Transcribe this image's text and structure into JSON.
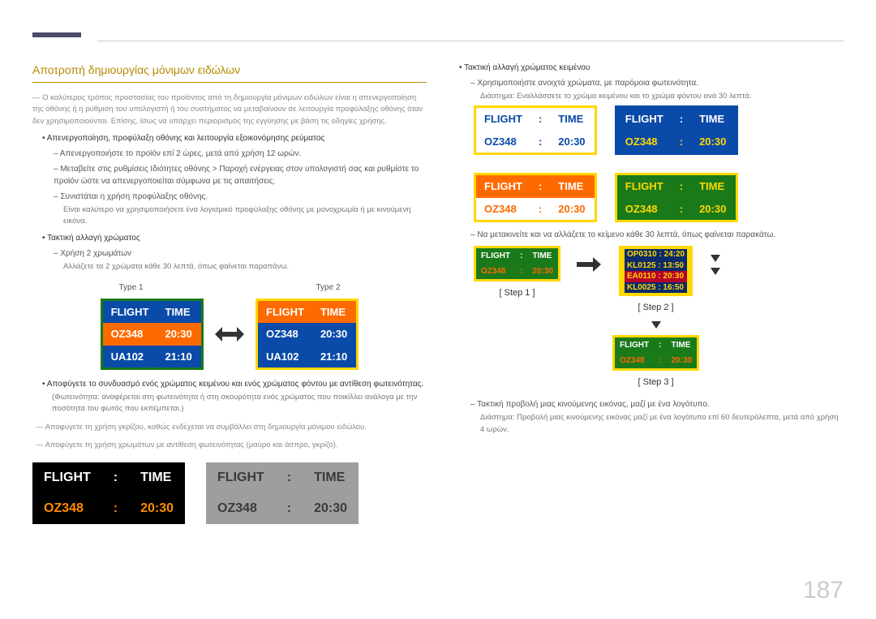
{
  "page_number": "187",
  "heading": "Αποτροπή δημιουργίας μόνιμων ειδώλων",
  "left": {
    "p1": "Ο καλύτερος τρόπος προστασίας του προϊόντος από τη δημιουργία μόνιμων ειδώλων είναι η απενεργοποίηση της οθόνης ή η ρύθμιση του υπολογιστή ή του συστήματος να μεταβαίνουν σε λειτουργία προφύλαξης οθόνης όταν δεν χρησιμοποιούνται. Επίσης, ίσως να υπάρχει περιορισμός της εγγύησης με βάση τις οδηγίες χρήσης.",
    "b1": "Απενεργοποίηση, προφύλαξη οθόνης και λειτουργία εξοικονόμησης ρεύματος",
    "b1_s1": "Απενεργοποιήστε το προϊόν επί 2 ώρες, μετά από χρήση 12 ωρών.",
    "b1_s2": "Μεταβείτε στις ρυθμίσεις Ιδιότητες οθόνης > Παροχή ενέργειας στον υπολογιστή σας και ρυθμίστε το προϊόν ώστε να απενεργοποιείται σύμφωνα με τις απαιτήσεις.",
    "b1_s3": "Συνιστάται η χρήση προφύλαξης οθόνης.",
    "b1_s3t": "Είναι καλύτερο να χρησιμοποιήσετε ένα λογισμικό προφύλαξης οθόνης με μονοχρωμία ή με κινούμενη εικόνα.",
    "b2": "Τακτική αλλαγή χρώματος",
    "b2_s1": "Χρήση 2 χρωμάτων",
    "b2_s1t": "Αλλάζετε τα 2 χρώματα κάθε 30 λεπτά, όπως φαίνεται παραπάνω.",
    "type1": "Type 1",
    "type2": "Type 2",
    "b3": "Αποφύγετε το συνδυασμό ενός χρώματος κειμένου και ενός χρώματος φόντου με αντίθεση φωτεινότητας.",
    "b3t": "(Φωτεινότητα: αναφέρεται στη φωτεινότητα ή στη σκουρότητα ενός χρώματος που ποικίλλει ανάλογα με την ποσότητα του φωτός που εκπέμπεται.)",
    "p2": "Αποφύγετε τη χρήση γκρίζου, καθώς ενδέχεται να συμβάλλει στη δημιουργία μόνιμου ειδώλου.",
    "p3": "Αποφύγετε τη χρήση χρωμάτων με αντίθεση φωτεινότητας (μαύρο και άσπρο, γκρίζο).",
    "type1_table": {
      "border": "#1a7a1a",
      "rows": [
        {
          "c1": "FLIGHT",
          "c2": "TIME",
          "bg": "#0a4aa8"
        },
        {
          "c1": "OZ348",
          "c2": "20:30",
          "bg": "#ff6a00"
        },
        {
          "c1": "UA102",
          "c2": "21:10",
          "bg": "#0a4aa8"
        }
      ]
    },
    "type2_table": {
      "border": "#ffd800",
      "rows": [
        {
          "c1": "FLIGHT",
          "c2": "TIME",
          "bg": "#ff6a00"
        },
        {
          "c1": "OZ348",
          "c2": "20:30",
          "bg": "#0a4aa8"
        },
        {
          "c1": "UA102",
          "c2": "21:10",
          "bg": "#0a4aa8"
        }
      ]
    },
    "bottom_black": {
      "bg": "#000000",
      "r1": {
        "c1": "FLIGHT",
        "c2": ":",
        "c3": "TIME",
        "fg": "#ffffff"
      },
      "r2": {
        "c1": "OZ348",
        "c2": ":",
        "c3": "20:30",
        "fg": "#ff8a00"
      }
    },
    "bottom_gray": {
      "bg": "#9e9e9e",
      "r1": {
        "c1": "FLIGHT",
        "c2": ":",
        "c3": "TIME",
        "fg": "#3a3a3a"
      },
      "r2": {
        "c1": "OZ348",
        "c2": ":",
        "c3": "20:30",
        "fg": "#3a3a3a"
      }
    }
  },
  "right": {
    "b1": "Τακτική αλλαγή χρώματος κειμένου",
    "b1_s1": "Χρησιμοποιήστε ανοιχτά χρώματα, με παρόμοια φωτεινότητα.",
    "b1_s1t": "Διάστημα: Εναλλάσσετε το χρώμα κειμένου και το χρώμα φόντου ανά 30 λεπτά.",
    "grid": [
      {
        "border": "#ffd800",
        "r1": {
          "bg": "#ffffff",
          "fg": "#0a4aa8",
          "c1": "FLIGHT",
          "c2": ":",
          "c3": "TIME"
        },
        "r2": {
          "bg": "#ffffff",
          "fg": "#0a4aa8",
          "c1": "OZ348",
          "c2": ":",
          "c3": "20:30"
        }
      },
      {
        "border": "#0a4aa8",
        "r1": {
          "bg": "#0a4aa8",
          "fg": "#ffffff",
          "c1": "FLIGHT",
          "c2": ":",
          "c3": "TIME"
        },
        "r2": {
          "bg": "#0a4aa8",
          "fg": "#ffd800",
          "c1": "OZ348",
          "c2": ":",
          "c3": "20:30"
        }
      },
      {
        "border": "#ffd800",
        "r1": {
          "bg": "#ff6a00",
          "fg": "#ffffff",
          "c1": "FLIGHT",
          "c2": ":",
          "c3": "TIME"
        },
        "r2": {
          "bg": "#ffffff",
          "fg": "#ff6a00",
          "c1": "OZ348",
          "c2": ":",
          "c3": "20:30"
        }
      },
      {
        "border": "#ffd800",
        "r1": {
          "bg": "#1a7a1a",
          "fg": "#ffd800",
          "c1": "FLIGHT",
          "c2": ":",
          "c3": "TIME"
        },
        "r2": {
          "bg": "#1a7a1a",
          "fg": "#ffd800",
          "c1": "OZ348",
          "c2": ":",
          "c3": "20:30"
        }
      }
    ],
    "b1_s2": "Να μετακινείτε και να αλλάζετε το κείμενο κάθε 30 λεπτά, όπως φαίνεται παρακάτω.",
    "step_tab": {
      "border": "#ffd800",
      "r1": {
        "bg": "#1a7a1a",
        "fg": "#ffffff",
        "c1": "FLIGHT",
        "c2": ":",
        "c3": "TIME"
      },
      "r2": {
        "bg": "#1a7a1a",
        "fg": "#ff6a00",
        "c1": "OZ348",
        "c2": ":",
        "c3": "20:30"
      }
    },
    "stack": [
      {
        "t": "OP0310  :  24:20",
        "fg": "#ffd800",
        "bg": "#0a2a6a"
      },
      {
        "t": "KL0125  :  13:50",
        "fg": "#ffd800",
        "bg": "#0a2a6a"
      },
      {
        "t": "EA0110  :  20:30",
        "fg": "#ffd800",
        "bg": "#b5002a"
      },
      {
        "t": "KL0025  :  16:50",
        "fg": "#ffd800",
        "bg": "#0a2a6a"
      }
    ],
    "step1": "[ Step 1 ]",
    "step2": "[ Step 2 ]",
    "step3": "[ Step 3 ]",
    "b1_s3": "Τακτική προβολή μιας κινούμενης εικόνας, μαζί με ένα λογότυπο.",
    "b1_s3t": "Διάστημα: Προβολή μιας κινούμενης εικόνας μαζί με ένα λογότυπο επί 60 δευτερόλεπτα, μετά από χρήση 4 ωρών."
  }
}
